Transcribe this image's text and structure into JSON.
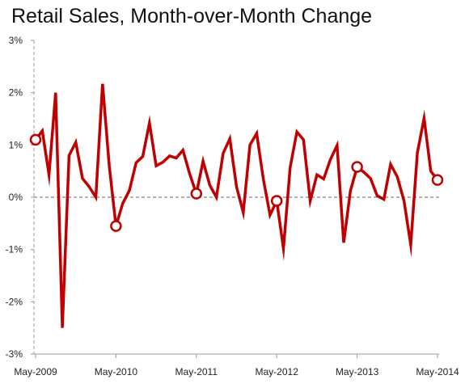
{
  "chart_data": {
    "type": "line",
    "title": "Retail Sales, Month-over-Month Change",
    "xlabel": "",
    "ylabel": "",
    "ylim": [
      -3,
      3
    ],
    "yticks": [
      {
        "value": 3,
        "label": "3%"
      },
      {
        "value": 2,
        "label": "2%"
      },
      {
        "value": 1,
        "label": "1%"
      },
      {
        "value": 0,
        "label": "0%"
      },
      {
        "value": -1,
        "label": "-1%"
      },
      {
        "value": -2,
        "label": "-2%"
      },
      {
        "value": -3,
        "label": "-3%"
      }
    ],
    "xticks": [
      "May-2009",
      "May-2010",
      "May-2011",
      "May-2012",
      "May-2013",
      "May-2014"
    ],
    "x": [
      "May-2009",
      "Jun-2009",
      "Jul-2009",
      "Aug-2009",
      "Sep-2009",
      "Oct-2009",
      "Nov-2009",
      "Dec-2009",
      "Jan-2010",
      "Feb-2010",
      "Mar-2010",
      "Apr-2010",
      "May-2010",
      "Jun-2010",
      "Jul-2010",
      "Aug-2010",
      "Sep-2010",
      "Oct-2010",
      "Nov-2010",
      "Dec-2010",
      "Jan-2011",
      "Feb-2011",
      "Mar-2011",
      "Apr-2011",
      "May-2011",
      "Jun-2011",
      "Jul-2011",
      "Aug-2011",
      "Sep-2011",
      "Oct-2011",
      "Nov-2011",
      "Dec-2011",
      "Jan-2012",
      "Feb-2012",
      "Mar-2012",
      "Apr-2012",
      "May-2012",
      "Jun-2012",
      "Jul-2012",
      "Aug-2012",
      "Sep-2012",
      "Oct-2012",
      "Nov-2012",
      "Dec-2012",
      "Jan-2013",
      "Feb-2013",
      "Mar-2013",
      "Apr-2013",
      "May-2013",
      "Jun-2013",
      "Jul-2013",
      "Aug-2013",
      "Sep-2013",
      "Oct-2013",
      "Nov-2013",
      "Dec-2013",
      "Jan-2014",
      "Feb-2014",
      "Mar-2014",
      "Apr-2014",
      "May-2014"
    ],
    "series": [
      {
        "color": "#c00000",
        "values": [
          1.1,
          1.27,
          0.43,
          2.0,
          -2.5,
          0.8,
          1.05,
          0.36,
          0.2,
          0.0,
          2.17,
          0.6,
          -0.55,
          -0.12,
          0.13,
          0.66,
          0.78,
          1.42,
          0.6,
          0.67,
          0.79,
          0.75,
          0.9,
          0.45,
          0.07,
          0.69,
          0.23,
          0.0,
          0.84,
          1.12,
          0.2,
          -0.29,
          1.0,
          1.22,
          0.35,
          -0.34,
          -0.07,
          -0.98,
          0.57,
          1.25,
          1.1,
          -0.07,
          0.43,
          0.35,
          0.72,
          0.99,
          -0.87,
          0.12,
          0.58,
          0.48,
          0.36,
          0.03,
          -0.04,
          0.63,
          0.39,
          -0.07,
          -0.91,
          0.85,
          1.51,
          0.5,
          0.33
        ]
      }
    ],
    "highlighted_points": [
      "May-2009",
      "May-2010",
      "May-2011",
      "May-2012",
      "May-2013",
      "May-2014"
    ],
    "grid": false,
    "zero_line": "dashed",
    "legend": "none"
  }
}
